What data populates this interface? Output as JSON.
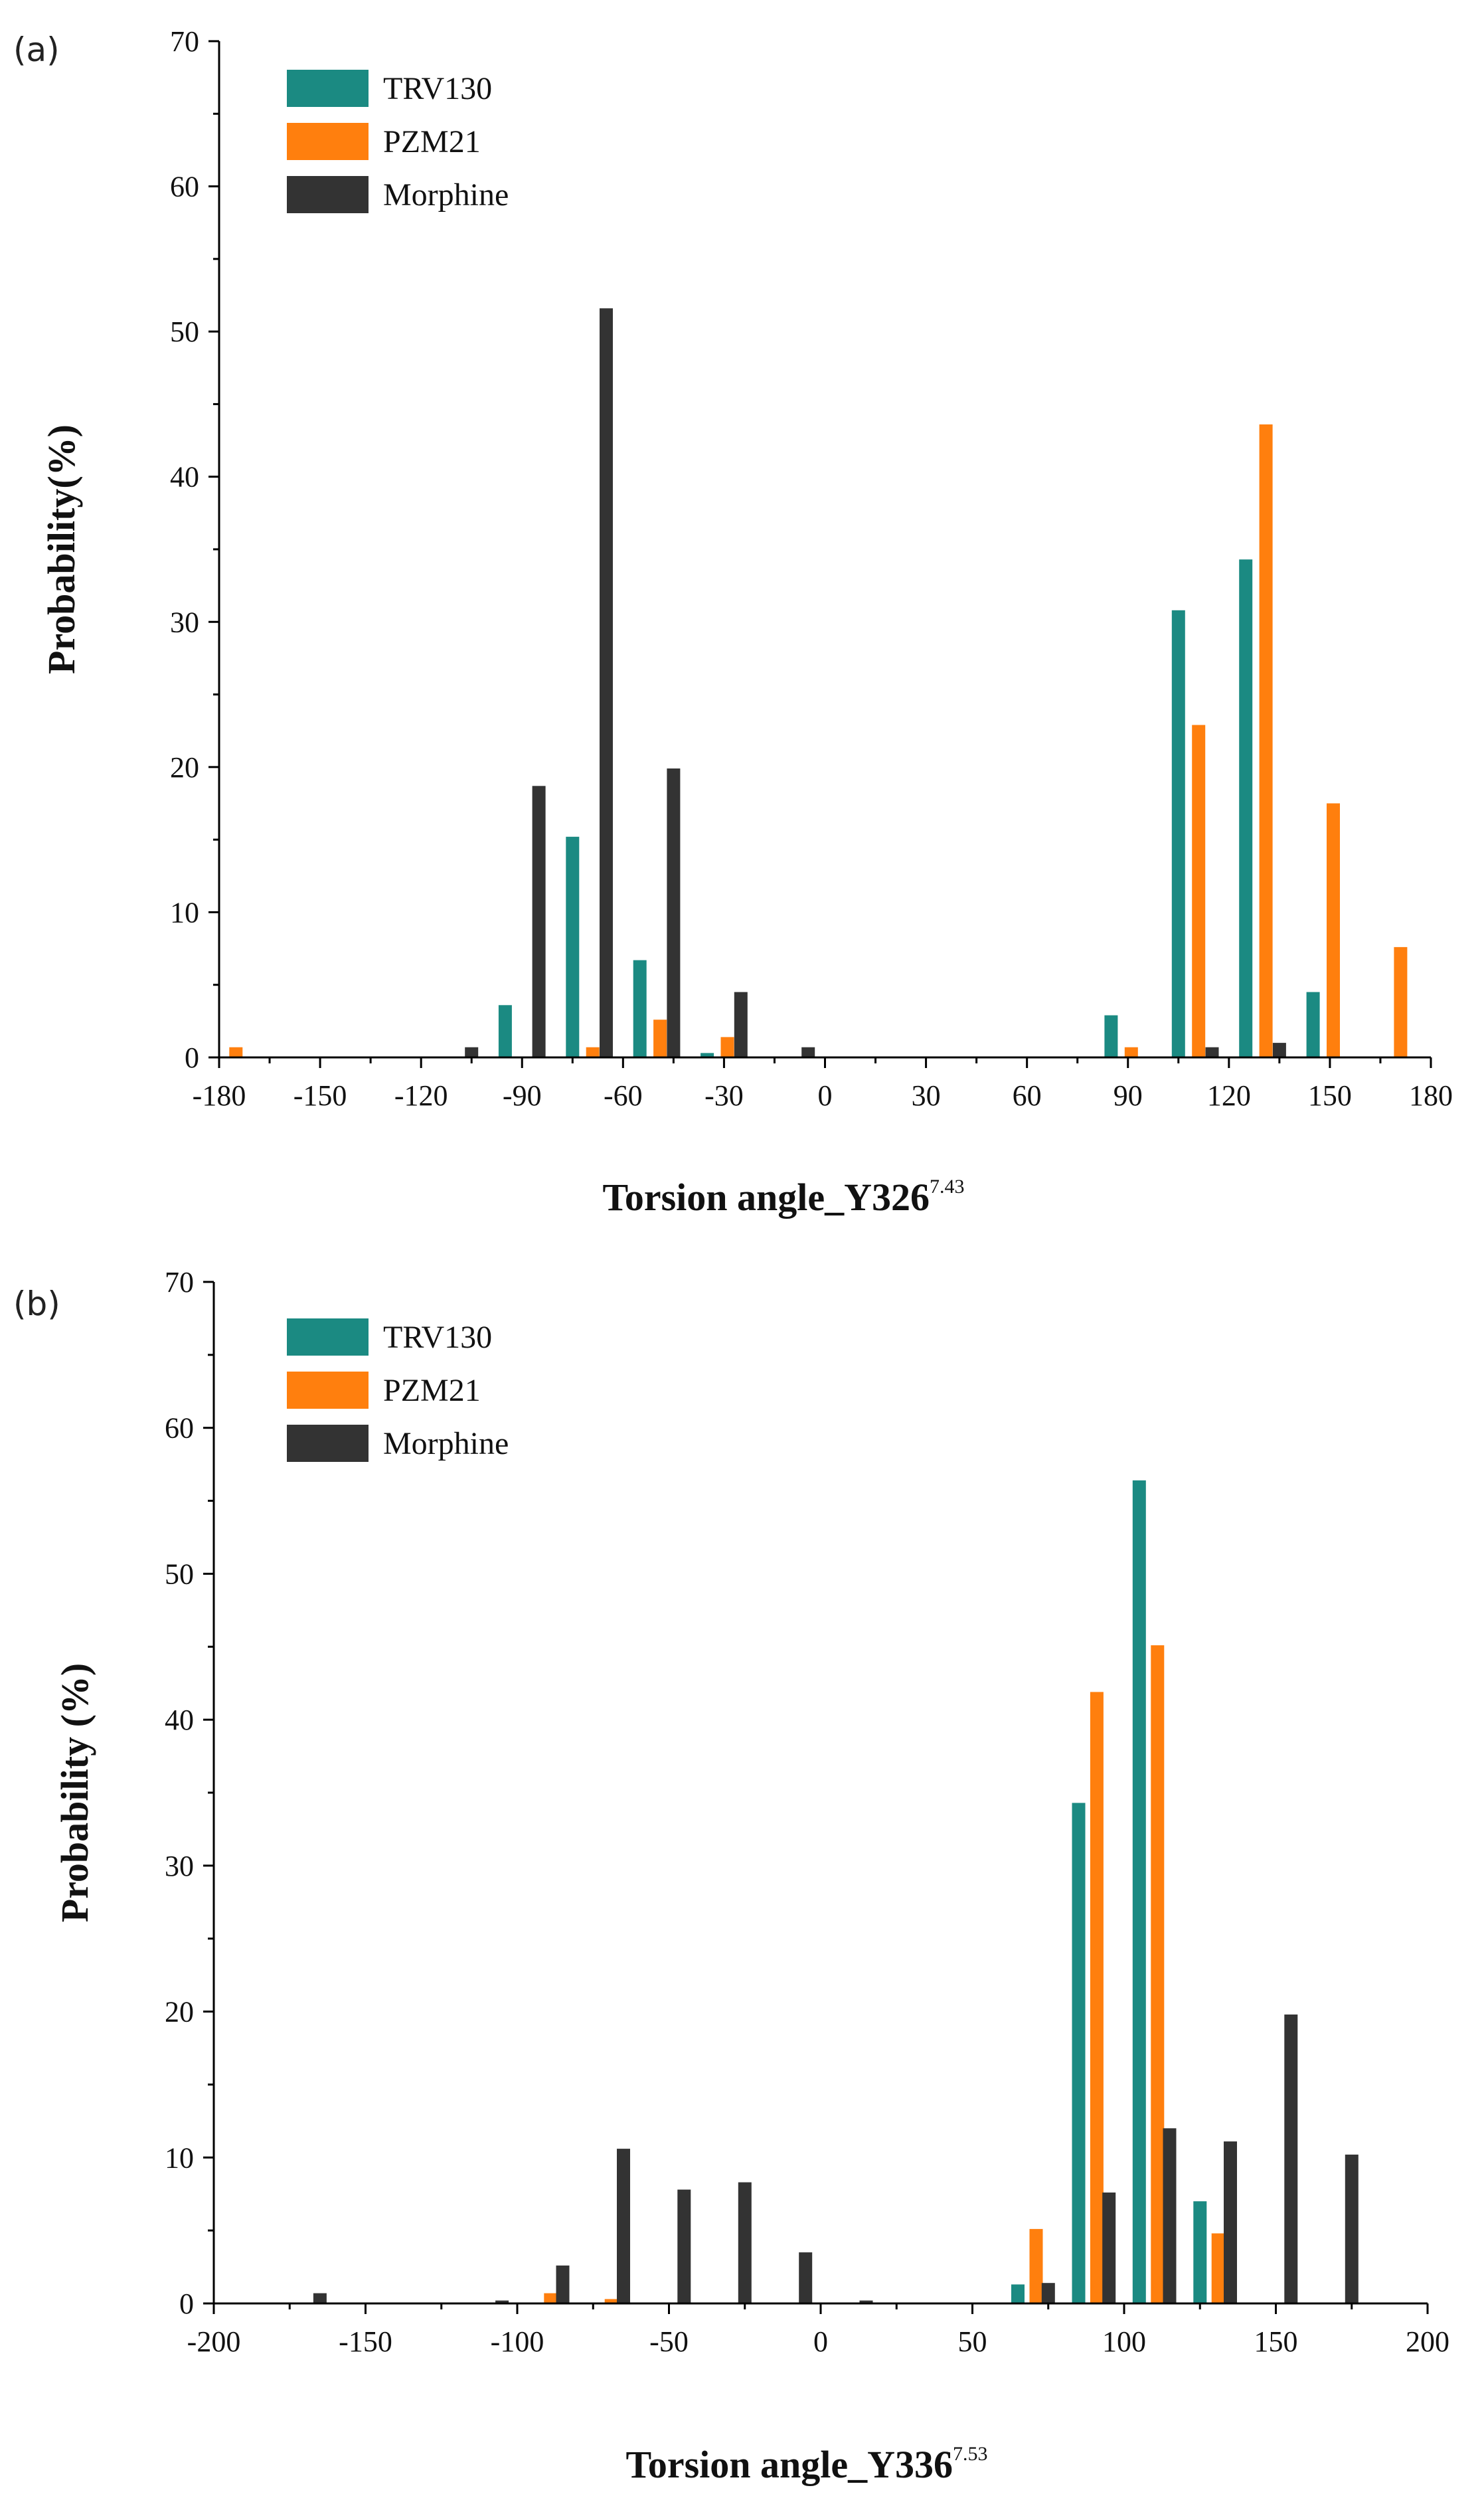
{
  "colors": {
    "TRV130": "#1b8a82",
    "PZM21": "#ff7f0e",
    "Morphine": "#333333"
  },
  "chart_data": [
    {
      "id": "a",
      "panel_label": "(a)",
      "type": "bar",
      "xlabel": "Torsion angle_Y326",
      "xlabel_superscript": "7.43",
      "ylabel": "Probability(%)",
      "xlim": [
        -180,
        180
      ],
      "ylim": [
        0,
        70
      ],
      "xticks": [
        -180,
        -150,
        -120,
        -90,
        -60,
        -30,
        0,
        30,
        60,
        90,
        120,
        150,
        180
      ],
      "yticks": [
        0,
        10,
        20,
        30,
        40,
        50,
        60,
        70
      ],
      "legend": [
        "TRV130",
        "PZM21",
        "Morphine"
      ],
      "legend_position": "top-left",
      "series": [
        {
          "name": "TRV130",
          "x": [
            -95,
            -75,
            -55,
            -35,
            85,
            105,
            125,
            145
          ],
          "values": [
            3.6,
            15.2,
            6.7,
            0.3,
            2.9,
            30.8,
            34.3,
            4.5
          ]
        },
        {
          "name": "PZM21",
          "x": [
            -175,
            -69,
            -49,
            -29,
            91,
            111,
            131,
            151,
            171
          ],
          "values": [
            0.7,
            0.7,
            2.6,
            1.4,
            0.7,
            22.9,
            43.6,
            17.5,
            7.6
          ]
        },
        {
          "name": "Morphine",
          "x": [
            -105,
            -85,
            -65,
            -45,
            -25,
            -5,
            115,
            135
          ],
          "values": [
            0.7,
            18.7,
            51.6,
            19.9,
            4.5,
            0.7,
            0.7,
            1.0
          ]
        }
      ]
    },
    {
      "id": "b",
      "panel_label": "(b)",
      "type": "bar",
      "xlabel": "Torsion angle_Y336",
      "xlabel_superscript": "7.53",
      "ylabel": "Probability (%)",
      "xlim": [
        -200,
        200
      ],
      "ylim": [
        0,
        70
      ],
      "xticks": [
        -200,
        -150,
        -100,
        -50,
        0,
        50,
        100,
        150,
        200
      ],
      "yticks": [
        0,
        10,
        20,
        30,
        40,
        50,
        60,
        70
      ],
      "legend": [
        "TRV130",
        "PZM21",
        "Morphine"
      ],
      "legend_position": "top-left",
      "series": [
        {
          "name": "TRV130",
          "x": [
            65,
            85,
            105,
            125
          ],
          "values": [
            1.3,
            34.3,
            56.4,
            7.0
          ]
        },
        {
          "name": "PZM21",
          "x": [
            -89,
            -69,
            71,
            91,
            111,
            131
          ],
          "values": [
            0.7,
            0.3,
            5.1,
            41.9,
            45.1,
            4.8
          ]
        },
        {
          "name": "Morphine",
          "x": [
            -165,
            -105,
            -85,
            -65,
            -45,
            -25,
            -5,
            15,
            75,
            95,
            115,
            135,
            155,
            175
          ],
          "values": [
            0.7,
            0.2,
            2.6,
            10.6,
            7.8,
            8.3,
            3.5,
            0.2,
            1.4,
            7.6,
            12.0,
            11.1,
            19.8,
            10.2
          ]
        }
      ]
    }
  ]
}
